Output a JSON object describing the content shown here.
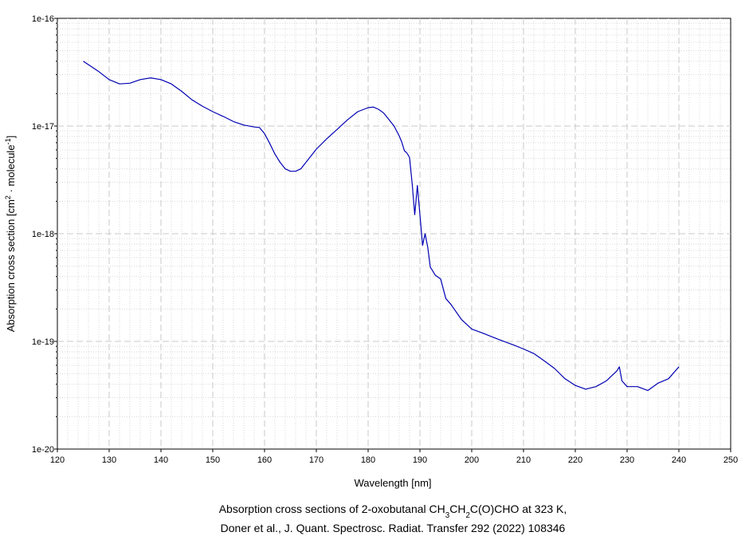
{
  "chart_data": {
    "type": "line",
    "title_lines": [
      [
        {
          "text": "Absorption cross sections of 2-oxobutanal CH"
        },
        {
          "text": "3",
          "shift": "sub"
        },
        {
          "text": "CH"
        },
        {
          "text": "2",
          "shift": "sub"
        },
        {
          "text": "C(O)CHO at 323 K,"
        }
      ],
      [
        {
          "text": "Doner et al., J. Quant. Spectrosc. Radiat. Transfer 292 (2022) 108346"
        }
      ]
    ],
    "x_label": "Wavelength [nm]",
    "y_label": [
      {
        "text": "Absorption cross section [cm"
      },
      {
        "text": "2",
        "shift": "super"
      },
      {
        "text": " · molecule"
      },
      {
        "text": "-1",
        "shift": "super"
      },
      {
        "text": "]"
      }
    ],
    "color": "#0000b4",
    "log_y": true,
    "grid": true,
    "xlim": [
      120,
      250
    ],
    "xticks": [
      120,
      130,
      140,
      150,
      160,
      170,
      180,
      190,
      200,
      210,
      220,
      230,
      240,
      250
    ],
    "ylim": [
      1e-20,
      1e-16
    ],
    "yticks": [
      1e-20,
      1e-19,
      1e-18,
      1e-17,
      1e-16
    ],
    "x": [
      125,
      128,
      130,
      132,
      134,
      136,
      138,
      140,
      142,
      144,
      146,
      148,
      150,
      152,
      154,
      156,
      158,
      159,
      160,
      161,
      162,
      163,
      164,
      165,
      166,
      167,
      168,
      170,
      172,
      174,
      176,
      178,
      180,
      181,
      182,
      183,
      184,
      185,
      186,
      186.5,
      187,
      187.5,
      188,
      188.5,
      189,
      189.5,
      190,
      190.5,
      191,
      191.5,
      192,
      193,
      194,
      195,
      196,
      198,
      200,
      202,
      205,
      208,
      210,
      212,
      214,
      216,
      218,
      220,
      222,
      224,
      226,
      228,
      228.5,
      229,
      230,
      232,
      234,
      236,
      238,
      240
    ],
    "values": [
      4e-17,
      3.2e-17,
      2.7e-17,
      2.46e-17,
      2.5e-17,
      2.7e-17,
      2.8e-17,
      2.7e-17,
      2.46e-17,
      2.1e-17,
      1.75e-17,
      1.53e-17,
      1.36e-17,
      1.23e-17,
      1.1e-17,
      1.02e-17,
      9.8e-18,
      9.7e-18,
      8.5e-18,
      6.9e-18,
      5.5e-18,
      4.6e-18,
      4e-18,
      3.8e-18,
      3.8e-18,
      4e-18,
      4.6e-18,
      6.1e-18,
      7.6e-18,
      9.3e-18,
      1.14e-17,
      1.36e-17,
      1.48e-17,
      1.5e-17,
      1.43e-17,
      1.32e-17,
      1.15e-17,
      1e-17,
      8.1e-18,
      7.1e-18,
      5.9e-18,
      5.6e-18,
      5.1e-18,
      2.9e-18,
      1.5e-18,
      2.8e-18,
      1.5e-18,
      7.8e-19,
      1e-18,
      7.5e-19,
      4.9e-19,
      4.1e-19,
      3.8e-19,
      2.5e-19,
      2.2e-19,
      1.6e-19,
      1.3e-19,
      1.2e-19,
      1.05e-19,
      9.3e-20,
      8.5e-20,
      7.7e-20,
      6.6e-20,
      5.6e-20,
      4.5e-20,
      3.9e-20,
      3.6e-20,
      3.8e-20,
      4.3e-20,
      5.3e-20,
      5.8e-20,
      4.3e-20,
      3.8e-20,
      3.8e-20,
      3.5e-20,
      4.1e-20,
      4.5e-20,
      5.8e-20
    ]
  }
}
